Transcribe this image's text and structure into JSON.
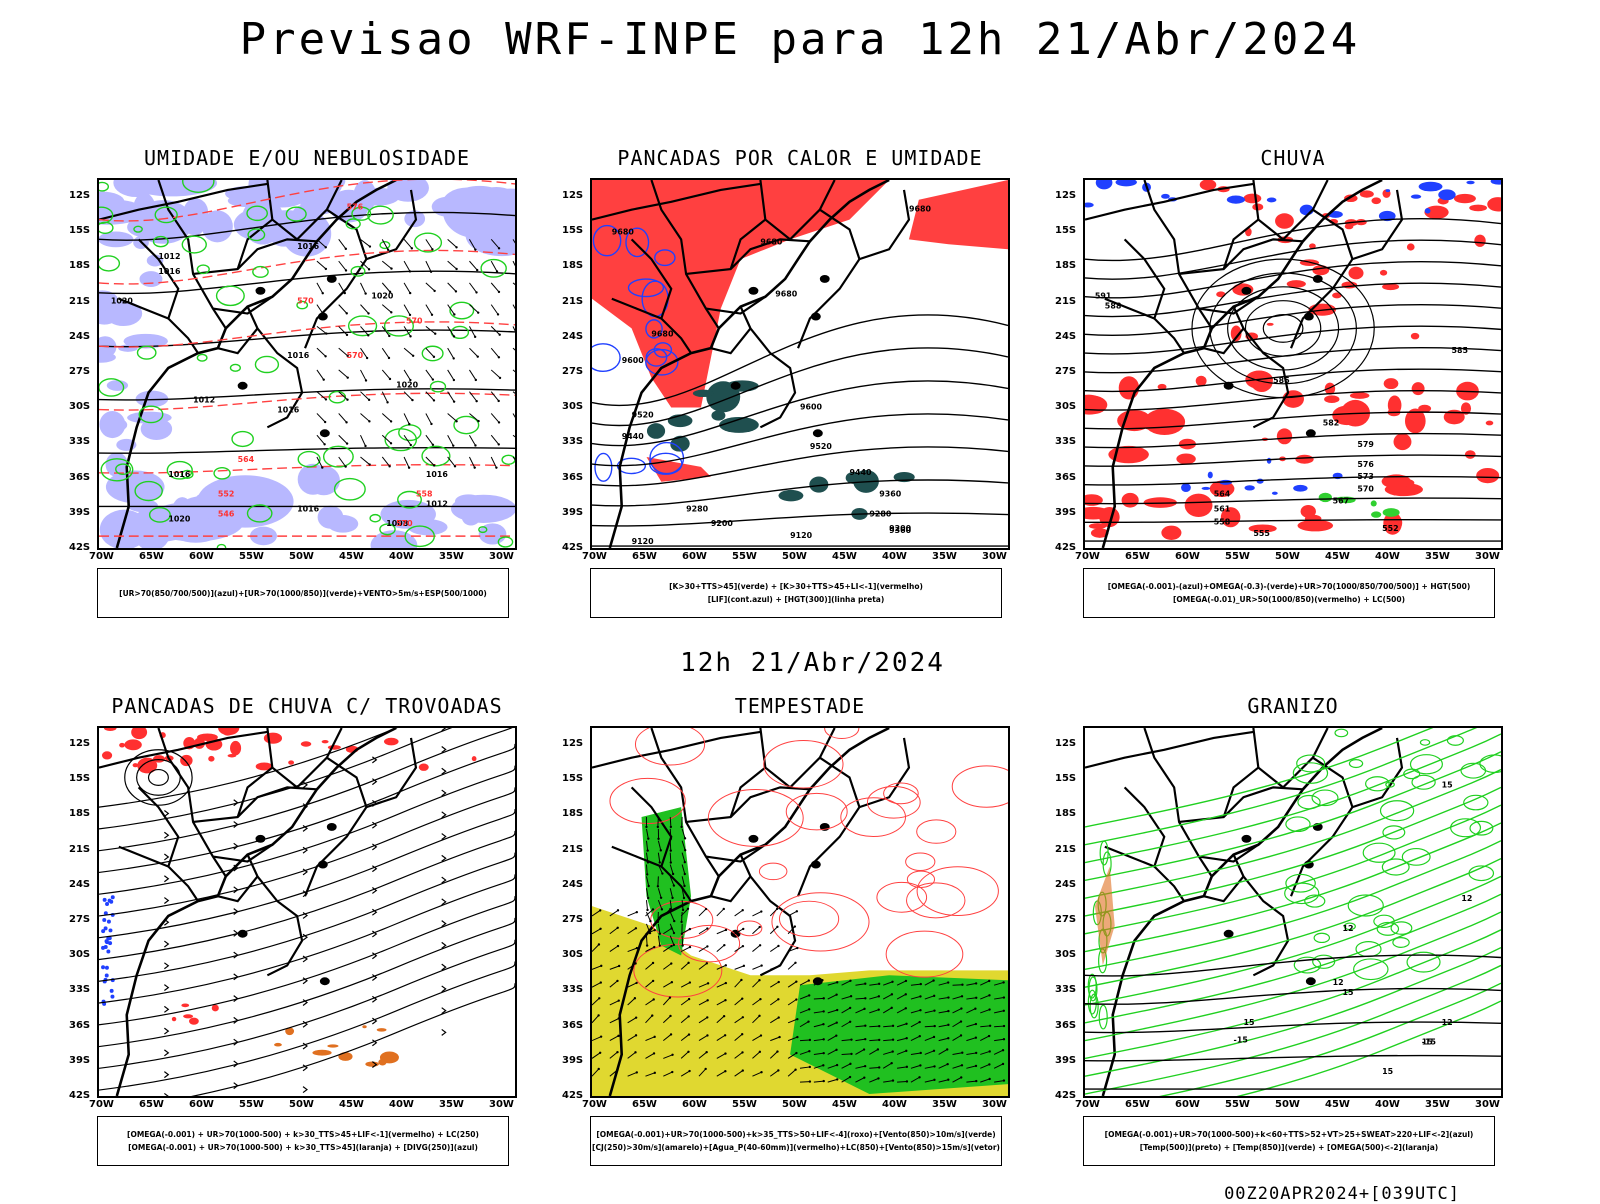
{
  "main_title": "Previsao WRF-INPE  para 12h 21/Abr/2024",
  "mid_title": "12h 21/Abr/2024",
  "footer": "00Z20APR2024+[039UTC]",
  "lat_labels": [
    "12S",
    "15S",
    "18S",
    "21S",
    "24S",
    "27S",
    "30S",
    "33S",
    "36S",
    "39S",
    "42S"
  ],
  "lon_labels": [
    "70W",
    "65W",
    "60W",
    "55W",
    "50W",
    "45W",
    "40W",
    "35W",
    "30W"
  ],
  "panels": [
    {
      "title": "UMIDADE E/OU NEBULOSIDADE",
      "legend": [
        "[UR>70(850/700/500)](azul)+[UR>70(1000/850)](verde)+VENTO>5m/s+ESP(500/1000)"
      ],
      "labels": [
        "1016",
        "1012",
        "1016",
        "1020",
        "1016",
        "1012",
        "1016",
        "1016",
        "1020",
        "1016",
        "1012",
        "1020",
        "1008",
        "1016",
        "1020",
        "576",
        "570",
        "570",
        "570",
        "564",
        "552",
        "546",
        "558",
        "570"
      ]
    },
    {
      "title": "PANCADAS POR CALOR E UMIDADE",
      "legend": [
        "[K>30+TTS>45](verde) + [K>30+TTS>45+LI<-1](vermelho)",
        "[LIF](cont.azul) + [HGT(300)](linha preta)"
      ],
      "labels": [
        "9680",
        "9680",
        "9680",
        "9680",
        "9680",
        "9600",
        "9600",
        "9520",
        "9520",
        "9440",
        "9440",
        "9360",
        "9360",
        "9280",
        "9280",
        "9200",
        "9200",
        "9120",
        "9120"
      ]
    },
    {
      "title": "CHUVA",
      "legend": [
        "[OMEGA(-0.001)-(azul)+OMEGA(-0.3)-(verde)+UR>70(1000/850/700/500)] + HGT(500)",
        "[OMEGA(-0.01)_UR>50(1000/850)(vermelho) + LC(500)"
      ],
      "labels": [
        "591",
        "588",
        "585",
        "585",
        "582",
        "579",
        "576",
        "573",
        "570",
        "567",
        "564",
        "561",
        "558",
        "555",
        "552"
      ]
    },
    {
      "title": "PANCADAS DE CHUVA C/ TROVOADAS",
      "legend": [
        "[OMEGA(-0.001) + UR>70(1000-500) + k>30_TTS>45+LIF<-1](vermelho) + LC(250)",
        "[OMEGA(-0.001) + UR>70(1000-500) + k>30_TTS>45](laranja) + [DIVG(250)](azul)"
      ],
      "labels": []
    },
    {
      "title": "TEMPESTADE",
      "legend": [
        "[OMEGA(-0.001)+UR>70(1000-500)+k>35_TTS>50+LIF<-4](roxo)+[Vento(850)>10m/s](verde)",
        "[CJ(250)>30m/s](amarelo)+[Agua_P(40-60mm)](vermelho)+LC(850)+[Vento(850)>15m/s](vetor)"
      ],
      "labels": []
    },
    {
      "title": "GRANIZO",
      "legend": [
        "[OMEGA(-0.001)+UR>70(1000-500)+k<60+TTS>52+VT>25+SWEAT>220+LIF<-2](azul)",
        "[Temp(500)](preto) + [Temp(850)](verde) + [OMEGA(500)<-2](laranja)"
      ],
      "labels": [
        "15",
        "12",
        "12",
        "12",
        "15",
        "15",
        "15",
        "12",
        "-15",
        "-15",
        "15"
      ]
    }
  ]
}
